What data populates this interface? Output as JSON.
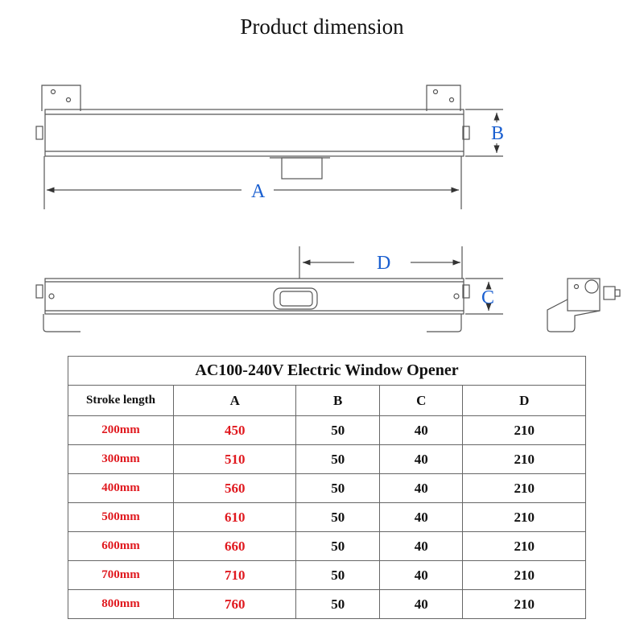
{
  "title": "Product dimension",
  "diagram": {
    "labels": {
      "a": "A",
      "b": "B",
      "c": "C",
      "d": "D"
    },
    "label_color": "#1a5fd0"
  },
  "table": {
    "caption": "AC100-240V Electric Window Opener",
    "headers": [
      "Stroke length",
      "A",
      "B",
      "C",
      "D"
    ],
    "highlight_color": "#e0191f",
    "rows": [
      [
        "200mm",
        "450",
        "50",
        "40",
        "210"
      ],
      [
        "300mm",
        "510",
        "50",
        "40",
        "210"
      ],
      [
        "400mm",
        "560",
        "50",
        "40",
        "210"
      ],
      [
        "500mm",
        "610",
        "50",
        "40",
        "210"
      ],
      [
        "600mm",
        "660",
        "50",
        "40",
        "210"
      ],
      [
        "700mm",
        "710",
        "50",
        "40",
        "210"
      ],
      [
        "800mm",
        "760",
        "50",
        "40",
        "210"
      ]
    ]
  }
}
